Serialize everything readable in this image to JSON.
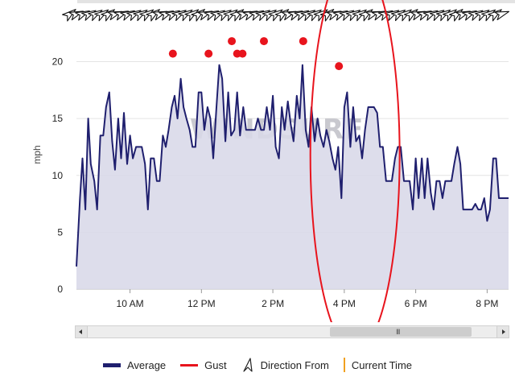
{
  "chart_data": {
    "type": "line",
    "title": "",
    "xlabel": "",
    "ylabel": "mph",
    "ylim": [
      0,
      24
    ],
    "yticks": [
      0,
      5,
      10,
      15,
      20
    ],
    "xlim": [
      8.5,
      20.6
    ],
    "xticks": [
      {
        "value": 10,
        "label": "10 AM"
      },
      {
        "value": 12,
        "label": "12 PM"
      },
      {
        "value": 14,
        "label": "2 PM"
      },
      {
        "value": 16,
        "label": "4 PM"
      },
      {
        "value": 18,
        "label": "6 PM"
      },
      {
        "value": 20,
        "label": "8 PM"
      }
    ],
    "grid": true,
    "legend_position": "bottom",
    "watermark": "WINDSURF",
    "series": [
      {
        "name": "Average",
        "color": "#1f1f6e",
        "fill": "#d8d8e8",
        "points": [
          [
            8.5,
            2
          ],
          [
            8.6,
            8
          ],
          [
            8.67,
            11.5
          ],
          [
            8.75,
            7
          ],
          [
            8.83,
            15
          ],
          [
            8.9,
            11
          ],
          [
            9.0,
            9.5
          ],
          [
            9.08,
            7
          ],
          [
            9.17,
            13.5
          ],
          [
            9.25,
            13.5
          ],
          [
            9.33,
            16
          ],
          [
            9.42,
            17.3
          ],
          [
            9.5,
            13
          ],
          [
            9.58,
            10.5
          ],
          [
            9.67,
            15
          ],
          [
            9.75,
            11.5
          ],
          [
            9.83,
            15.5
          ],
          [
            9.92,
            11
          ],
          [
            10.0,
            13.5
          ],
          [
            10.08,
            11.5
          ],
          [
            10.17,
            12.5
          ],
          [
            10.25,
            12.5
          ],
          [
            10.33,
            12.5
          ],
          [
            10.42,
            11
          ],
          [
            10.5,
            7
          ],
          [
            10.58,
            11.5
          ],
          [
            10.67,
            11.5
          ],
          [
            10.75,
            9.5
          ],
          [
            10.83,
            9.5
          ],
          [
            10.92,
            13.5
          ],
          [
            11.0,
            12.5
          ],
          [
            11.08,
            14
          ],
          [
            11.17,
            16
          ],
          [
            11.25,
            17
          ],
          [
            11.33,
            15
          ],
          [
            11.42,
            18.5
          ],
          [
            11.5,
            16
          ],
          [
            11.58,
            15
          ],
          [
            11.67,
            14
          ],
          [
            11.75,
            12.5
          ],
          [
            11.83,
            12.5
          ],
          [
            11.92,
            17.3
          ],
          [
            12.0,
            17.3
          ],
          [
            12.08,
            14
          ],
          [
            12.17,
            16
          ],
          [
            12.25,
            15
          ],
          [
            12.33,
            11.5
          ],
          [
            12.42,
            16
          ],
          [
            12.5,
            19.7
          ],
          [
            12.58,
            18.5
          ],
          [
            12.67,
            13
          ],
          [
            12.75,
            17.3
          ],
          [
            12.83,
            13.5
          ],
          [
            12.92,
            14
          ],
          [
            13.0,
            17.3
          ],
          [
            13.08,
            13.5
          ],
          [
            13.17,
            16
          ],
          [
            13.25,
            14
          ],
          [
            13.33,
            14
          ],
          [
            13.42,
            14
          ],
          [
            13.5,
            14
          ],
          [
            13.58,
            15
          ],
          [
            13.67,
            14
          ],
          [
            13.75,
            14
          ],
          [
            13.83,
            16
          ],
          [
            13.92,
            14
          ],
          [
            14.0,
            17
          ],
          [
            14.08,
            12.5
          ],
          [
            14.17,
            11.5
          ],
          [
            14.25,
            16
          ],
          [
            14.33,
            14
          ],
          [
            14.42,
            16.5
          ],
          [
            14.5,
            14.5
          ],
          [
            14.58,
            13
          ],
          [
            14.67,
            17
          ],
          [
            14.75,
            15
          ],
          [
            14.83,
            19.7
          ],
          [
            14.92,
            14
          ],
          [
            15.0,
            12.5
          ],
          [
            15.08,
            16
          ],
          [
            15.17,
            13
          ],
          [
            15.25,
            15
          ],
          [
            15.33,
            13.5
          ],
          [
            15.42,
            12.5
          ],
          [
            15.5,
            14
          ],
          [
            15.58,
            13
          ],
          [
            15.67,
            11.5
          ],
          [
            15.75,
            10.5
          ],
          [
            15.83,
            12.5
          ],
          [
            15.92,
            8
          ],
          [
            16.0,
            16
          ],
          [
            16.08,
            17.3
          ],
          [
            16.17,
            12.5
          ],
          [
            16.25,
            16
          ],
          [
            16.33,
            13
          ],
          [
            16.42,
            13.5
          ],
          [
            16.5,
            11.5
          ],
          [
            16.58,
            14
          ],
          [
            16.67,
            16
          ],
          [
            16.75,
            16
          ],
          [
            16.83,
            16
          ],
          [
            16.92,
            15.5
          ],
          [
            17.0,
            12.5
          ],
          [
            17.08,
            12.5
          ],
          [
            17.17,
            9.5
          ],
          [
            17.25,
            9.5
          ],
          [
            17.33,
            9.5
          ],
          [
            17.42,
            11.5
          ],
          [
            17.5,
            12.5
          ],
          [
            17.58,
            12.5
          ],
          [
            17.67,
            9.5
          ],
          [
            17.75,
            9.5
          ],
          [
            17.83,
            9.5
          ],
          [
            17.92,
            7
          ],
          [
            18.0,
            11.5
          ],
          [
            18.08,
            8
          ],
          [
            18.17,
            11.5
          ],
          [
            18.25,
            8
          ],
          [
            18.33,
            11.5
          ],
          [
            18.42,
            8.5
          ],
          [
            18.5,
            7
          ],
          [
            18.58,
            9.5
          ],
          [
            18.67,
            9.5
          ],
          [
            18.75,
            8
          ],
          [
            18.83,
            9.5
          ],
          [
            18.92,
            9.5
          ],
          [
            19.0,
            9.5
          ],
          [
            19.08,
            11
          ],
          [
            19.17,
            12.5
          ],
          [
            19.25,
            11
          ],
          [
            19.33,
            7
          ],
          [
            19.42,
            7
          ],
          [
            19.5,
            7
          ],
          [
            19.58,
            7
          ],
          [
            19.67,
            7.5
          ],
          [
            19.75,
            7
          ],
          [
            19.83,
            7
          ],
          [
            19.92,
            8
          ],
          [
            20.0,
            6
          ],
          [
            20.08,
            7
          ],
          [
            20.17,
            11.5
          ],
          [
            20.25,
            11.5
          ],
          [
            20.33,
            8
          ],
          [
            20.42,
            8
          ],
          [
            20.5,
            8
          ],
          [
            20.6,
            8
          ]
        ]
      },
      {
        "name": "Gust",
        "color": "#e8141d",
        "points": [
          [
            11.2,
            20.7
          ],
          [
            12.2,
            20.7
          ],
          [
            12.85,
            21.8
          ],
          [
            13.0,
            20.7
          ],
          [
            13.15,
            20.7
          ],
          [
            13.75,
            21.8
          ],
          [
            14.85,
            21.8
          ],
          [
            15.85,
            19.6
          ]
        ]
      }
    ],
    "direction_from": {
      "name": "Direction From",
      "arrow_count": 68,
      "row_mph": 24.2
    }
  },
  "legend": {
    "average": "Average",
    "gust": "Gust",
    "direction": "Direction From",
    "current_time": "Current Time"
  },
  "annotation": {
    "type": "ellipse",
    "color": "#e8141d",
    "center_x_value": 16.3,
    "center_y_mph": 11.8,
    "rx_value": 1.25,
    "ry_mph": 17.3
  },
  "scrollbar": {
    "grip": "III"
  }
}
